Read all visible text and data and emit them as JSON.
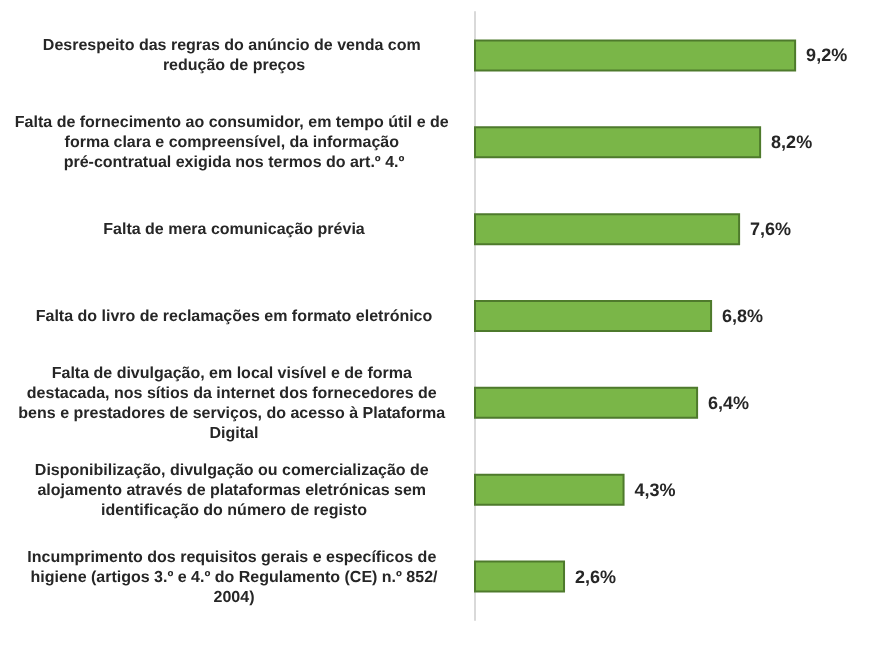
{
  "chart_data": {
    "type": "bar",
    "orientation": "horizontal",
    "categories": [
      "Desrespeito das regras do anúncio de venda com redução de preços",
      "Falta de fornecimento ao consumidor, em tempo útil e de forma clara e compreensível, da informação pré-contratual exigida nos termos do art.º 4.º",
      "Falta de mera comunicação prévia",
      "Falta do livro de reclamações em formato eletrónico",
      "Falta de divulgação, em local visível e de forma destacada, nos sítios da internet dos fornecedores de bens e prestadores de serviços, do acesso à Plataforma Digital",
      "Disponibilização, divulgação ou comercialização de alojamento através de plataformas eletrónicas sem identificação do número de registo",
      "Incumprimento dos requisitos gerais e específicos de higiene (artigos 3.º e 4.º do Regulamento (CE) n.º 852/2004)"
    ],
    "values": [
      9.2,
      8.2,
      7.6,
      6.8,
      6.4,
      4.3,
      2.6
    ],
    "value_labels": [
      "9,2%",
      "8,2%",
      "7,6%",
      "6,8%",
      "6,4%",
      "4,3%",
      "2,6%"
    ],
    "color": "#7ab648"
  }
}
